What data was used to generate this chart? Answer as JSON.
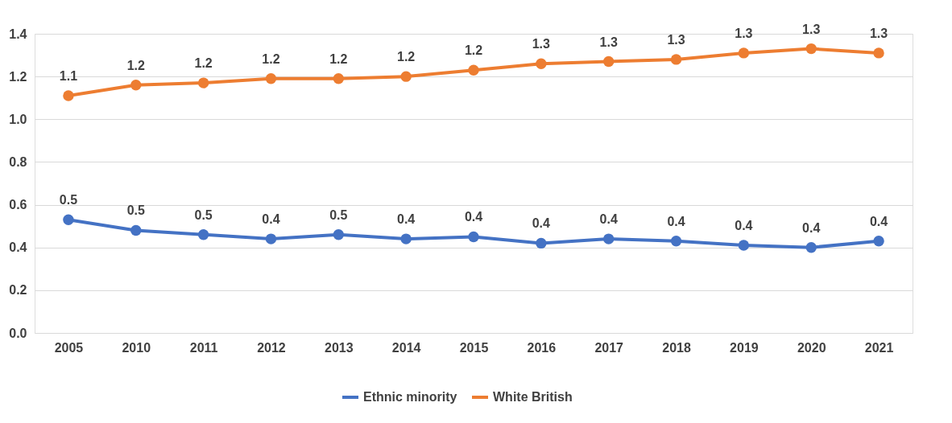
{
  "chart_data": {
    "type": "line",
    "categories": [
      "2005",
      "2010",
      "2011",
      "2012",
      "2013",
      "2014",
      "2015",
      "2016",
      "2017",
      "2018",
      "2019",
      "2020",
      "2021"
    ],
    "ylim": [
      0,
      1.4
    ],
    "yticks": [
      {
        "value": 0,
        "label": "0.0"
      },
      {
        "value": 0.2,
        "label": "0.2"
      },
      {
        "value": 0.4,
        "label": "0.4"
      },
      {
        "value": 0.6,
        "label": "0.6"
      },
      {
        "value": 0.8,
        "label": "0.8"
      },
      {
        "value": 1.0,
        "label": "1.0"
      },
      {
        "value": 1.2,
        "label": "1.2"
      },
      {
        "value": 1.4,
        "label": "1.4"
      }
    ],
    "grid": "y",
    "legend": "bottom",
    "marker": "circle",
    "line_style": "solid",
    "series": [
      {
        "name": "Ethnic minority",
        "color": "#4472c4",
        "values": [
          0.53,
          0.48,
          0.46,
          0.44,
          0.46,
          0.44,
          0.45,
          0.42,
          0.44,
          0.43,
          0.41,
          0.4,
          0.43
        ],
        "value_labels": [
          "0.5",
          "0.5",
          "0.5",
          "0.4",
          "0.5",
          "0.4",
          "0.4",
          "0.4",
          "0.4",
          "0.4",
          "0.4",
          "0.4",
          "0.4"
        ]
      },
      {
        "name": "White British",
        "color": "#ed7d31",
        "values": [
          1.11,
          1.16,
          1.17,
          1.19,
          1.19,
          1.2,
          1.23,
          1.26,
          1.27,
          1.28,
          1.31,
          1.33,
          1.31
        ],
        "value_labels": [
          "1.1",
          "1.2",
          "1.2",
          "1.2",
          "1.2",
          "1.2",
          "1.2",
          "1.3",
          "1.3",
          "1.3",
          "1.3",
          "1.3",
          "1.3"
        ]
      }
    ]
  }
}
